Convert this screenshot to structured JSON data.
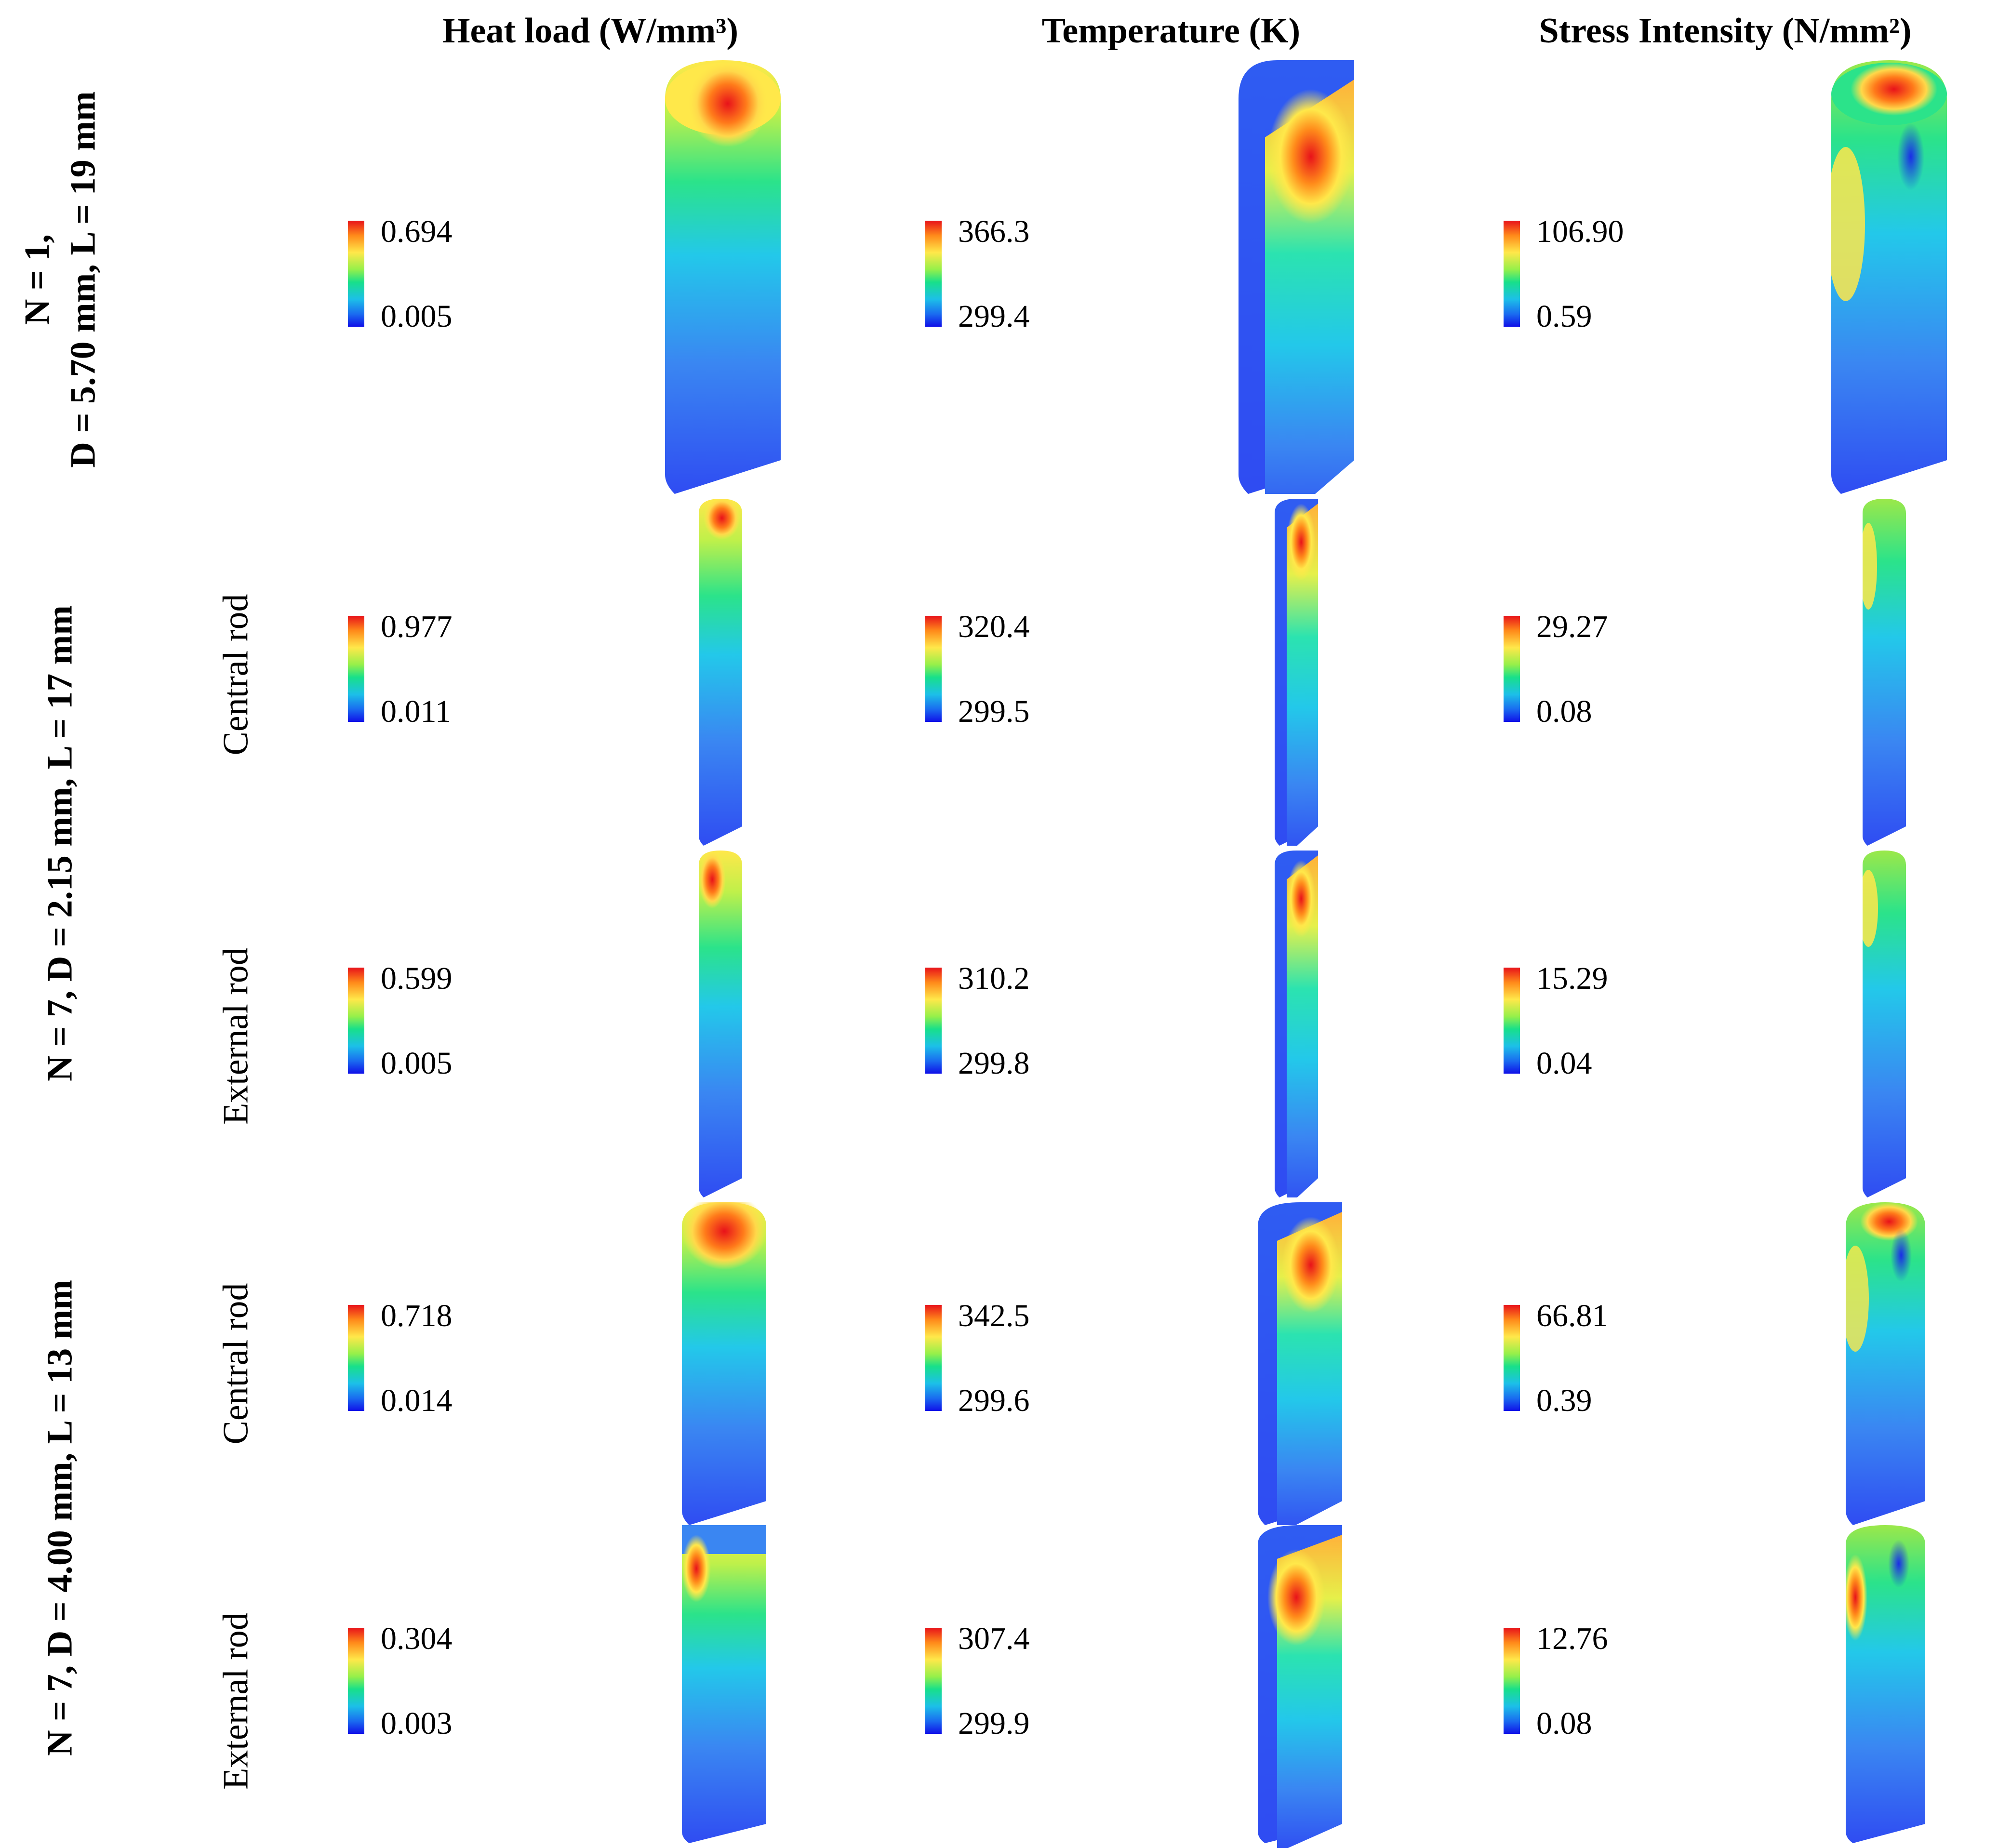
{
  "headers": {
    "heat": "Heat load (W/mm³)",
    "temp": "Temperature (K)",
    "stress": "Stress Intensity (N/mm²)"
  },
  "groups": [
    {
      "line1": "N = 1,",
      "line2": "D = 5.70 mm, L = 19 mm"
    },
    {
      "line1": "N = 7, D = 2.15 mm, L = 17 mm"
    },
    {
      "line1": "N = 7, D = 4.00 mm, L = 13 mm"
    }
  ],
  "rod_labels": {
    "r1": "Central rod",
    "r2": "External rod",
    "r3": "Central rod",
    "r4": "External rod"
  },
  "colorbars": {
    "r0": {
      "heat": {
        "max": "0.694",
        "min": "0.005"
      },
      "temp": {
        "max": "366.3",
        "min": "299.4"
      },
      "stress": {
        "max": "106.90",
        "min": "0.59"
      }
    },
    "r1": {
      "heat": {
        "max": "0.977",
        "min": "0.011"
      },
      "temp": {
        "max": "320.4",
        "min": "299.5"
      },
      "stress": {
        "max": "29.27",
        "min": "0.08"
      }
    },
    "r2": {
      "heat": {
        "max": "0.599",
        "min": "0.005"
      },
      "temp": {
        "max": "310.2",
        "min": "299.8"
      },
      "stress": {
        "max": "15.29",
        "min": "0.04"
      }
    },
    "r3": {
      "heat": {
        "max": "0.718",
        "min": "0.014"
      },
      "temp": {
        "max": "342.5",
        "min": "299.6"
      },
      "stress": {
        "max": "66.81",
        "min": "0.39"
      }
    },
    "r4": {
      "heat": {
        "max": "0.304",
        "min": "0.003"
      },
      "temp": {
        "max": "307.4",
        "min": "299.9"
      },
      "stress": {
        "max": "12.76",
        "min": "0.08"
      }
    }
  },
  "colors": {
    "red": "#e8121a",
    "orange": "#ff8a1a",
    "yellow": "#ffe84a",
    "green": "#2be38a",
    "cyan": "#23c8ea",
    "blue": "#2f5cf2"
  }
}
